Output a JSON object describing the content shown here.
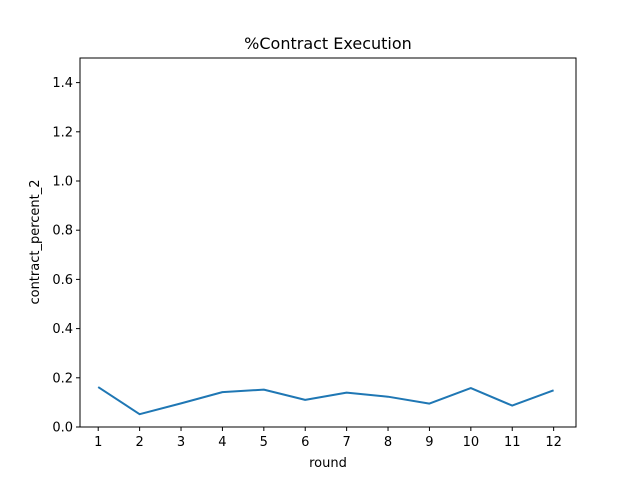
{
  "chart_data": {
    "type": "line",
    "title": "%Contract Execution",
    "xlabel": "round",
    "ylabel": "contract_percent_2",
    "x": [
      1,
      2,
      3,
      4,
      5,
      6,
      7,
      8,
      9,
      10,
      11,
      12
    ],
    "series": [
      {
        "values": [
          0.162,
          0.052,
          0.096,
          0.142,
          0.152,
          0.11,
          0.14,
          0.123,
          0.095,
          0.158,
          0.087,
          0.149
        ]
      }
    ],
    "xticks": [
      "1",
      "2",
      "3",
      "4",
      "5",
      "6",
      "7",
      "8",
      "9",
      "10",
      "11",
      "12"
    ],
    "yticks": [
      "0.0",
      "0.2",
      "0.4",
      "0.6",
      "0.8",
      "1.0",
      "1.2",
      "1.4"
    ],
    "xlim": [
      0.56,
      12.54
    ],
    "ylim": [
      0,
      1.5
    ],
    "grid": false,
    "colors": {
      "line": "#1f77b4",
      "axes": "#000000",
      "background": "#ffffff"
    }
  }
}
